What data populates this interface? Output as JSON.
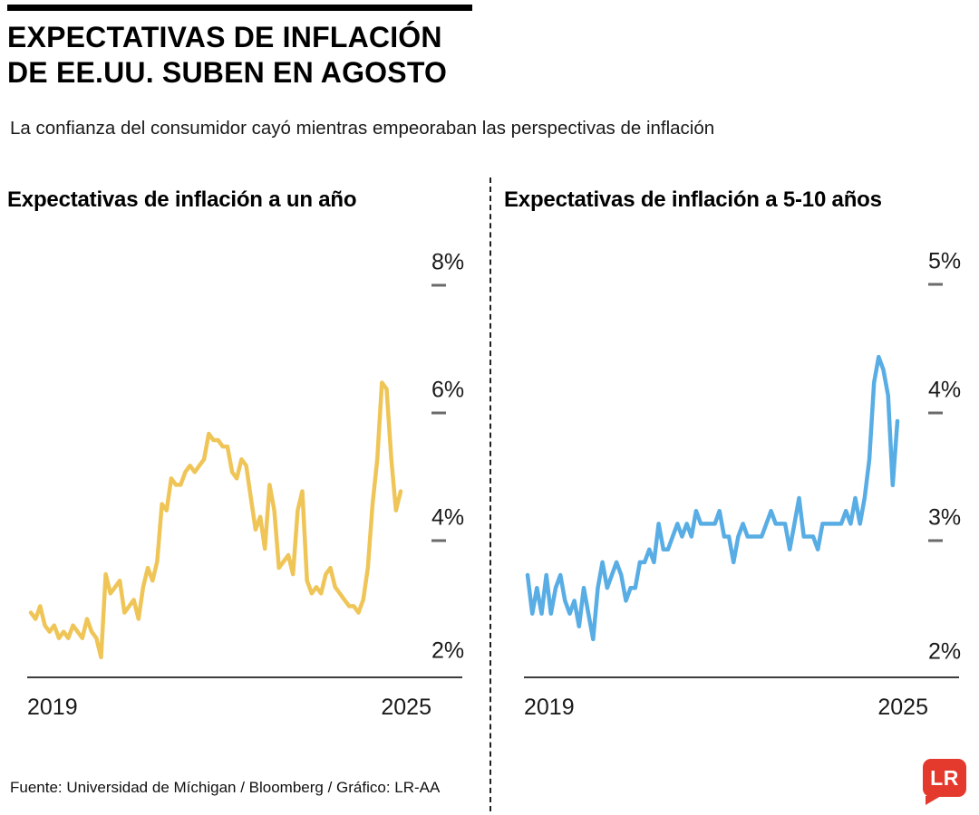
{
  "header": {
    "title_line1": "EXPECTATIVAS DE INFLACIÓN",
    "title_line2": "DE EE.UU. SUBEN EN AGOSTO",
    "subtitle": "La confianza del consumidor cayó mientras empeoraban las perspectivas de inflación"
  },
  "footer": {
    "source": "Fuente: Universidad de Míchigan / Bloomberg / Gráfico: LR-AA",
    "logo_text": "LR",
    "logo_color": "#e43a2e"
  },
  "chart_data": [
    {
      "type": "line",
      "title": "Expectativas de inflación a un año",
      "series_name": "Expectativa de inflación a 1 año (%)",
      "color": "#efc557",
      "x_frequency": "monthly",
      "x_start": "2019-01",
      "x_end": "2025-08",
      "x_tick_labels": [
        "2019",
        "2025"
      ],
      "y_tick_labels": [
        "8%",
        "6%",
        "4%",
        "2%"
      ],
      "y_tick_values": [
        8,
        6,
        4,
        2
      ],
      "ylim": [
        1.6,
        8.15
      ],
      "grid": false,
      "legend": "none",
      "values": [
        2.6,
        2.5,
        2.7,
        2.4,
        2.3,
        2.4,
        2.2,
        2.3,
        2.2,
        2.4,
        2.3,
        2.2,
        2.5,
        2.3,
        2.2,
        1.9,
        3.2,
        2.9,
        3.0,
        3.1,
        2.6,
        2.7,
        2.8,
        2.5,
        3.0,
        3.3,
        3.1,
        3.4,
        4.3,
        4.2,
        4.7,
        4.6,
        4.6,
        4.8,
        4.9,
        4.8,
        4.9,
        5.0,
        5.4,
        5.3,
        5.3,
        5.2,
        5.2,
        4.8,
        4.7,
        5.0,
        4.9,
        4.4,
        3.9,
        4.1,
        3.6,
        4.6,
        4.2,
        3.3,
        3.4,
        3.5,
        3.2,
        4.2,
        4.5,
        3.1,
        2.9,
        3.0,
        2.9,
        3.2,
        3.3,
        3.0,
        2.9,
        2.8,
        2.7,
        2.7,
        2.6,
        2.8,
        3.3,
        4.3,
        5.0,
        6.2,
        6.1,
        5.0,
        4.2,
        4.5
      ]
    },
    {
      "type": "line",
      "title": "Expectativas de inflación a 5-10 años",
      "series_name": "Expectativa de inflación a 5-10 años (%)",
      "color": "#58ade4",
      "x_frequency": "monthly",
      "x_start": "2019-01",
      "x_end": "2025-08",
      "x_tick_labels": [
        "2019",
        "2025"
      ],
      "y_tick_labels": [
        "5%",
        "4%",
        "3%",
        "2%"
      ],
      "y_tick_values": [
        5,
        4,
        3,
        2
      ],
      "ylim": [
        1.81,
        5.07
      ],
      "grid": false,
      "legend": "none",
      "values": [
        2.6,
        2.3,
        2.5,
        2.3,
        2.6,
        2.3,
        2.5,
        2.6,
        2.4,
        2.3,
        2.4,
        2.2,
        2.5,
        2.3,
        2.1,
        2.5,
        2.7,
        2.5,
        2.6,
        2.7,
        2.6,
        2.4,
        2.5,
        2.5,
        2.7,
        2.7,
        2.8,
        2.7,
        3.0,
        2.8,
        2.8,
        2.9,
        3.0,
        2.9,
        3.0,
        2.9,
        3.1,
        3.0,
        3.0,
        3.0,
        3.0,
        3.1,
        2.9,
        2.9,
        2.7,
        2.9,
        3.0,
        2.9,
        2.9,
        2.9,
        2.9,
        3.0,
        3.1,
        3.0,
        3.0,
        3.0,
        2.8,
        3.0,
        3.2,
        2.9,
        2.9,
        2.9,
        2.8,
        3.0,
        3.0,
        3.0,
        3.0,
        3.0,
        3.1,
        3.0,
        3.2,
        3.0,
        3.2,
        3.5,
        4.1,
        4.3,
        4.2,
        4.0,
        3.3,
        3.8
      ]
    }
  ]
}
